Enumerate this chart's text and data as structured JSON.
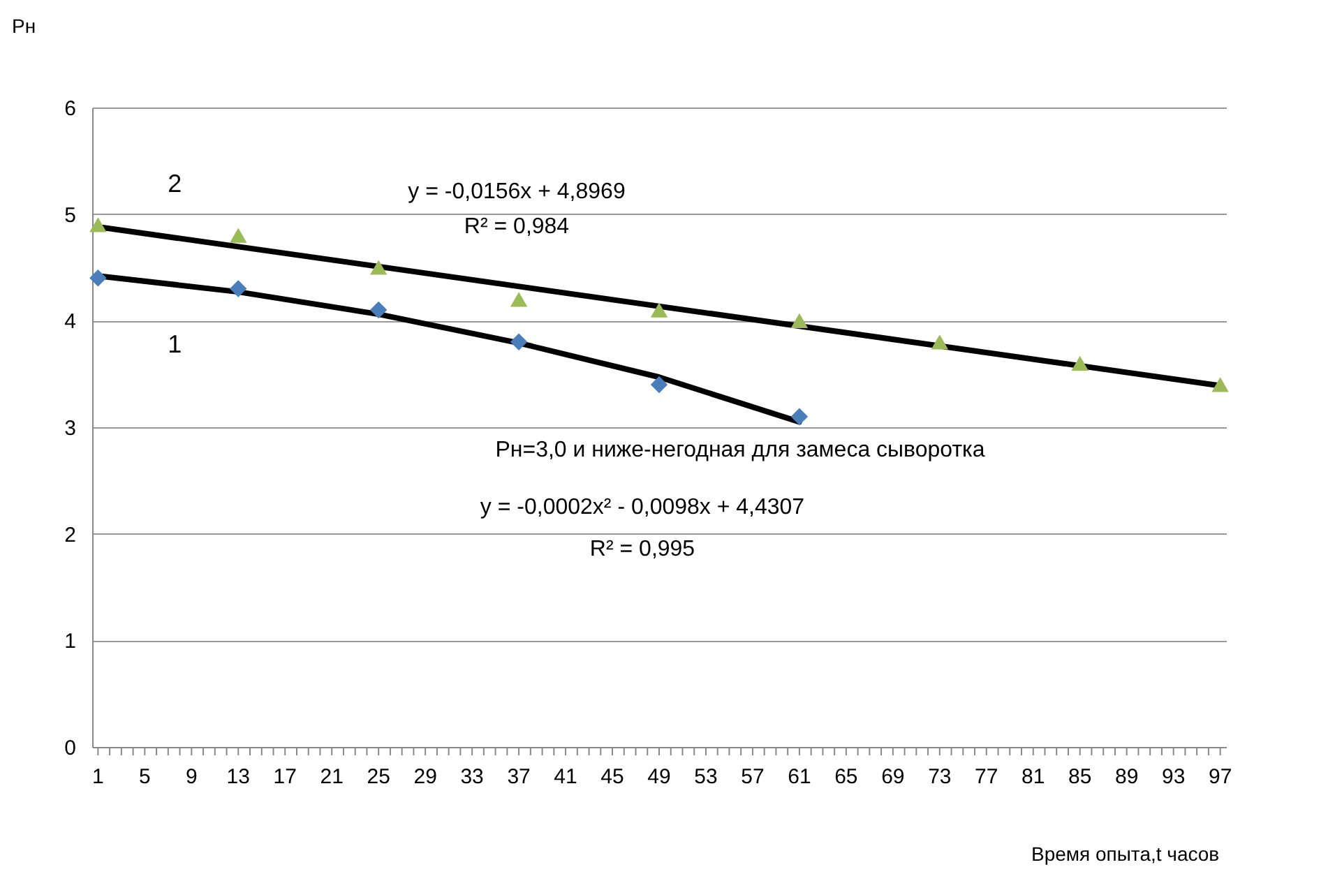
{
  "chart_data": {
    "type": "scatter",
    "xlabel": "Время опыта,t часов",
    "ylabel": "Рн",
    "xlim": [
      0.5,
      97.5
    ],
    "ylim": [
      0,
      6
    ],
    "yticks": [
      0,
      1,
      2,
      3,
      4,
      5,
      6
    ],
    "xticks": [
      1,
      {
        "value": 2,
        "label": null
      },
      {
        "value": 3,
        "label": null
      },
      {
        "value": 4,
        "label": null
      },
      5,
      {
        "value": 6,
        "label": null
      },
      {
        "value": 7,
        "label": null
      },
      {
        "value": 8,
        "label": null
      },
      9,
      {
        "value": 10,
        "label": null
      },
      {
        "value": 11,
        "label": null
      },
      {
        "value": 12,
        "label": null
      },
      13,
      {
        "value": 14,
        "label": null
      },
      {
        "value": 15,
        "label": null
      },
      {
        "value": 16,
        "label": null
      },
      17,
      {
        "value": 18,
        "label": null
      },
      {
        "value": 19,
        "label": null
      },
      {
        "value": 20,
        "label": null
      },
      21,
      {
        "value": 22,
        "label": null
      },
      {
        "value": 23,
        "label": null
      },
      {
        "value": 24,
        "label": null
      },
      25,
      {
        "value": 26,
        "label": null
      },
      {
        "value": 27,
        "label": null
      },
      {
        "value": 28,
        "label": null
      },
      29,
      {
        "value": 30,
        "label": null
      },
      {
        "value": 31,
        "label": null
      },
      {
        "value": 32,
        "label": null
      },
      33,
      {
        "value": 34,
        "label": null
      },
      {
        "value": 35,
        "label": null
      },
      {
        "value": 36,
        "label": null
      },
      37,
      {
        "value": 38,
        "label": null
      },
      {
        "value": 39,
        "label": null
      },
      {
        "value": 40,
        "label": null
      },
      41,
      {
        "value": 42,
        "label": null
      },
      {
        "value": 43,
        "label": null
      },
      {
        "value": 44,
        "label": null
      },
      45,
      {
        "value": 46,
        "label": null
      },
      {
        "value": 47,
        "label": null
      },
      {
        "value": 48,
        "label": null
      },
      49,
      {
        "value": 50,
        "label": null
      },
      {
        "value": 51,
        "label": null
      },
      {
        "value": 52,
        "label": null
      },
      53,
      {
        "value": 54,
        "label": null
      },
      {
        "value": 55,
        "label": null
      },
      {
        "value": 56,
        "label": null
      },
      57,
      {
        "value": 58,
        "label": null
      },
      {
        "value": 59,
        "label": null
      },
      {
        "value": 60,
        "label": null
      },
      61,
      {
        "value": 62,
        "label": null
      },
      {
        "value": 63,
        "label": null
      },
      {
        "value": 64,
        "label": null
      },
      65,
      {
        "value": 66,
        "label": null
      },
      {
        "value": 67,
        "label": null
      },
      {
        "value": 68,
        "label": null
      },
      69,
      {
        "value": 70,
        "label": null
      },
      {
        "value": 71,
        "label": null
      },
      {
        "value": 72,
        "label": null
      },
      73,
      {
        "value": 74,
        "label": null
      },
      {
        "value": 75,
        "label": null
      },
      {
        "value": 76,
        "label": null
      },
      77,
      {
        "value": 78,
        "label": null
      },
      {
        "value": 79,
        "label": null
      },
      {
        "value": 80,
        "label": null
      },
      81,
      {
        "value": 82,
        "label": null
      },
      {
        "value": 83,
        "label": null
      },
      {
        "value": 84,
        "label": null
      },
      85,
      {
        "value": 86,
        "label": null
      },
      {
        "value": 87,
        "label": null
      },
      {
        "value": 88,
        "label": null
      },
      89,
      {
        "value": 90,
        "label": null
      },
      {
        "value": 91,
        "label": null
      },
      {
        "value": 92,
        "label": null
      },
      93,
      {
        "value": 94,
        "label": null
      },
      {
        "value": 95,
        "label": null
      },
      {
        "value": 96,
        "label": null
      },
      97
    ],
    "grid": "y",
    "series": [
      {
        "marker": "diamond",
        "color": "#4a7ebb",
        "x": [
          1,
          13,
          25,
          37,
          49,
          61
        ],
        "values": [
          4.4,
          4.3,
          4.1,
          3.8,
          3.4,
          3.1
        ]
      },
      {
        "marker": "triangle",
        "color": "#9bbb59",
        "x": [
          1,
          13,
          25,
          37,
          49,
          61,
          73,
          85,
          97
        ],
        "values": [
          4.9,
          4.8,
          4.5,
          4.2,
          4.1,
          4.0,
          3.8,
          3.6,
          3.4
        ]
      },
      {
        "type": "line",
        "name": "1",
        "color": "#000000",
        "x": [
          1,
          13,
          25,
          37,
          49,
          61
        ],
        "values": [
          4.42,
          4.27,
          4.06,
          3.79,
          3.47,
          3.05
        ]
      },
      {
        "type": "line",
        "name": "2",
        "color": "#000000",
        "x": [
          1,
          97
        ],
        "values": [
          4.88,
          3.39
        ]
      }
    ],
    "annotations": [
      "y = -0,0156x + 4,8969",
      "R² = 0,984",
      "Рн=3,0 и ниже-негодная для замеса сыворотка",
      "y = -0,0002x² - 0,0098x + 4,4307",
      "R² = 0,995"
    ]
  }
}
